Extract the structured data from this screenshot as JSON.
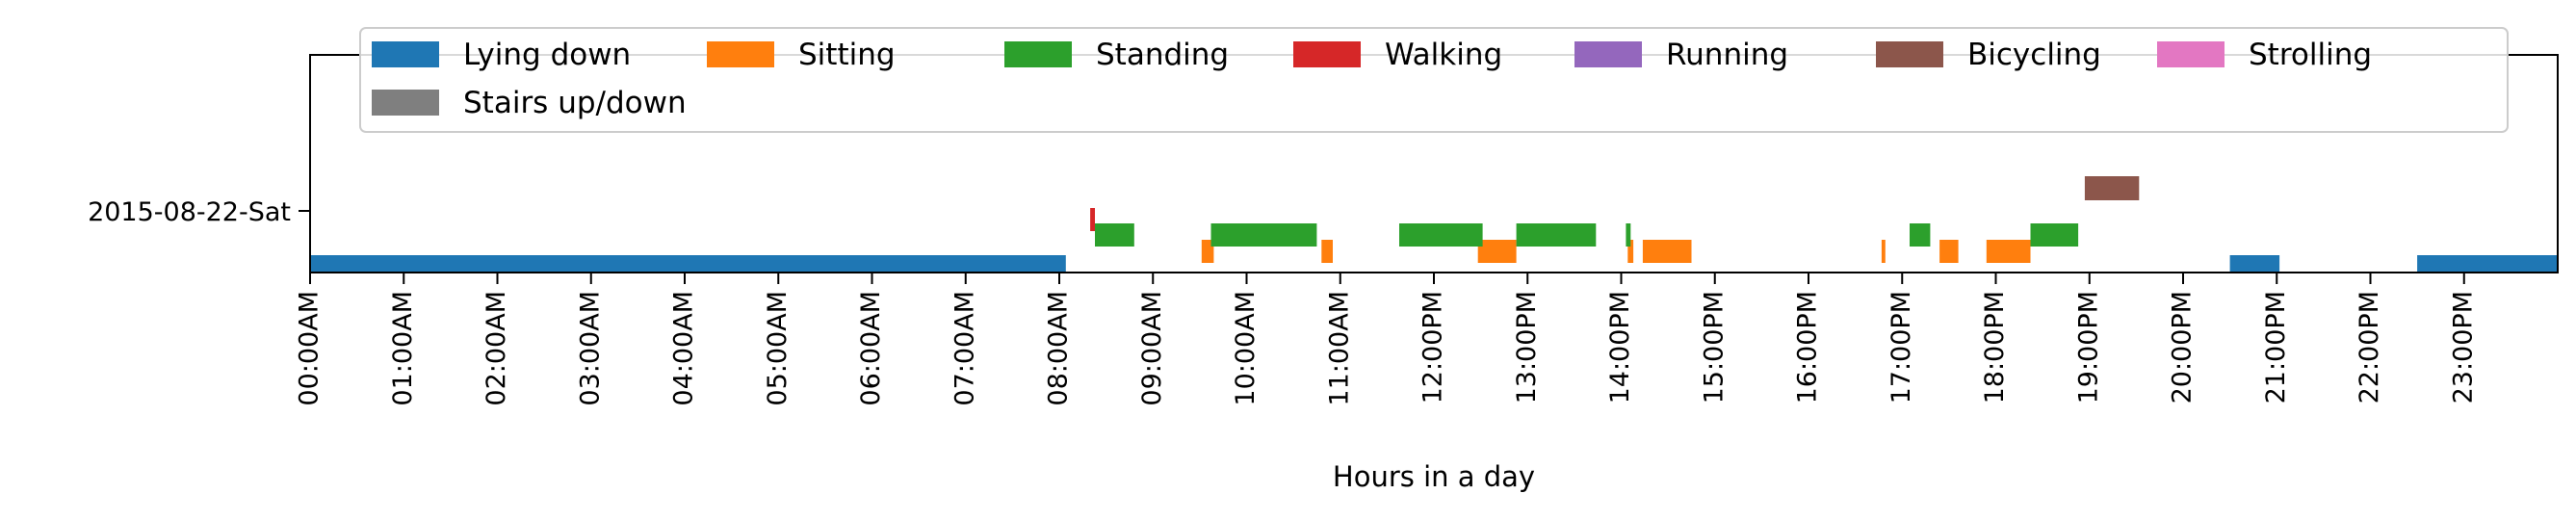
{
  "chart_data": {
    "type": "timeline",
    "title": "",
    "xlabel": "Hours in a day",
    "ylabel": "",
    "xlim": [
      0,
      24
    ],
    "x_tick_labels": [
      "00:00AM",
      "01:00AM",
      "02:00AM",
      "03:00AM",
      "04:00AM",
      "05:00AM",
      "06:00AM",
      "07:00AM",
      "08:00AM",
      "09:00AM",
      "10:00AM",
      "11:00AM",
      "12:00PM",
      "13:00PM",
      "14:00PM",
      "15:00PM",
      "16:00PM",
      "17:00PM",
      "18:00PM",
      "19:00PM",
      "20:00PM",
      "21:00PM",
      "22:00PM",
      "23:00PM"
    ],
    "y_tick_label": "2015-08-22-Sat",
    "grid": false,
    "legend_position": "top",
    "series": [
      {
        "name": "Lying down",
        "color": "#1f77b4",
        "intervals": [
          [
            0.0,
            8.07
          ],
          [
            20.5,
            21.03
          ],
          [
            22.5,
            24.0
          ]
        ]
      },
      {
        "name": "Sitting",
        "color": "#ff7f0e",
        "intervals": [
          [
            9.52,
            9.65
          ],
          [
            10.8,
            10.92
          ],
          [
            12.47,
            12.88
          ],
          [
            14.07,
            14.13
          ],
          [
            14.23,
            14.75
          ],
          [
            16.78,
            16.82
          ],
          [
            17.4,
            17.6
          ],
          [
            17.9,
            18.37
          ]
        ]
      },
      {
        "name": "Standing",
        "color": "#2ca02c",
        "intervals": [
          [
            8.38,
            8.8
          ],
          [
            9.62,
            10.75
          ],
          [
            11.63,
            12.52
          ],
          [
            12.88,
            13.73
          ],
          [
            14.05,
            14.1
          ],
          [
            17.08,
            17.3
          ],
          [
            18.37,
            18.88
          ]
        ]
      },
      {
        "name": "Walking",
        "color": "#d62728",
        "intervals": [
          [
            8.33,
            8.38
          ]
        ]
      },
      {
        "name": "Running",
        "color": "#9467bd",
        "intervals": []
      },
      {
        "name": "Bicycling",
        "color": "#8c564b",
        "intervals": [
          [
            18.95,
            19.53
          ]
        ]
      },
      {
        "name": "Strolling",
        "color": "#e377c2",
        "intervals": []
      },
      {
        "name": "Stairs up/down",
        "color": "#7f7f7f",
        "intervals": []
      }
    ]
  }
}
